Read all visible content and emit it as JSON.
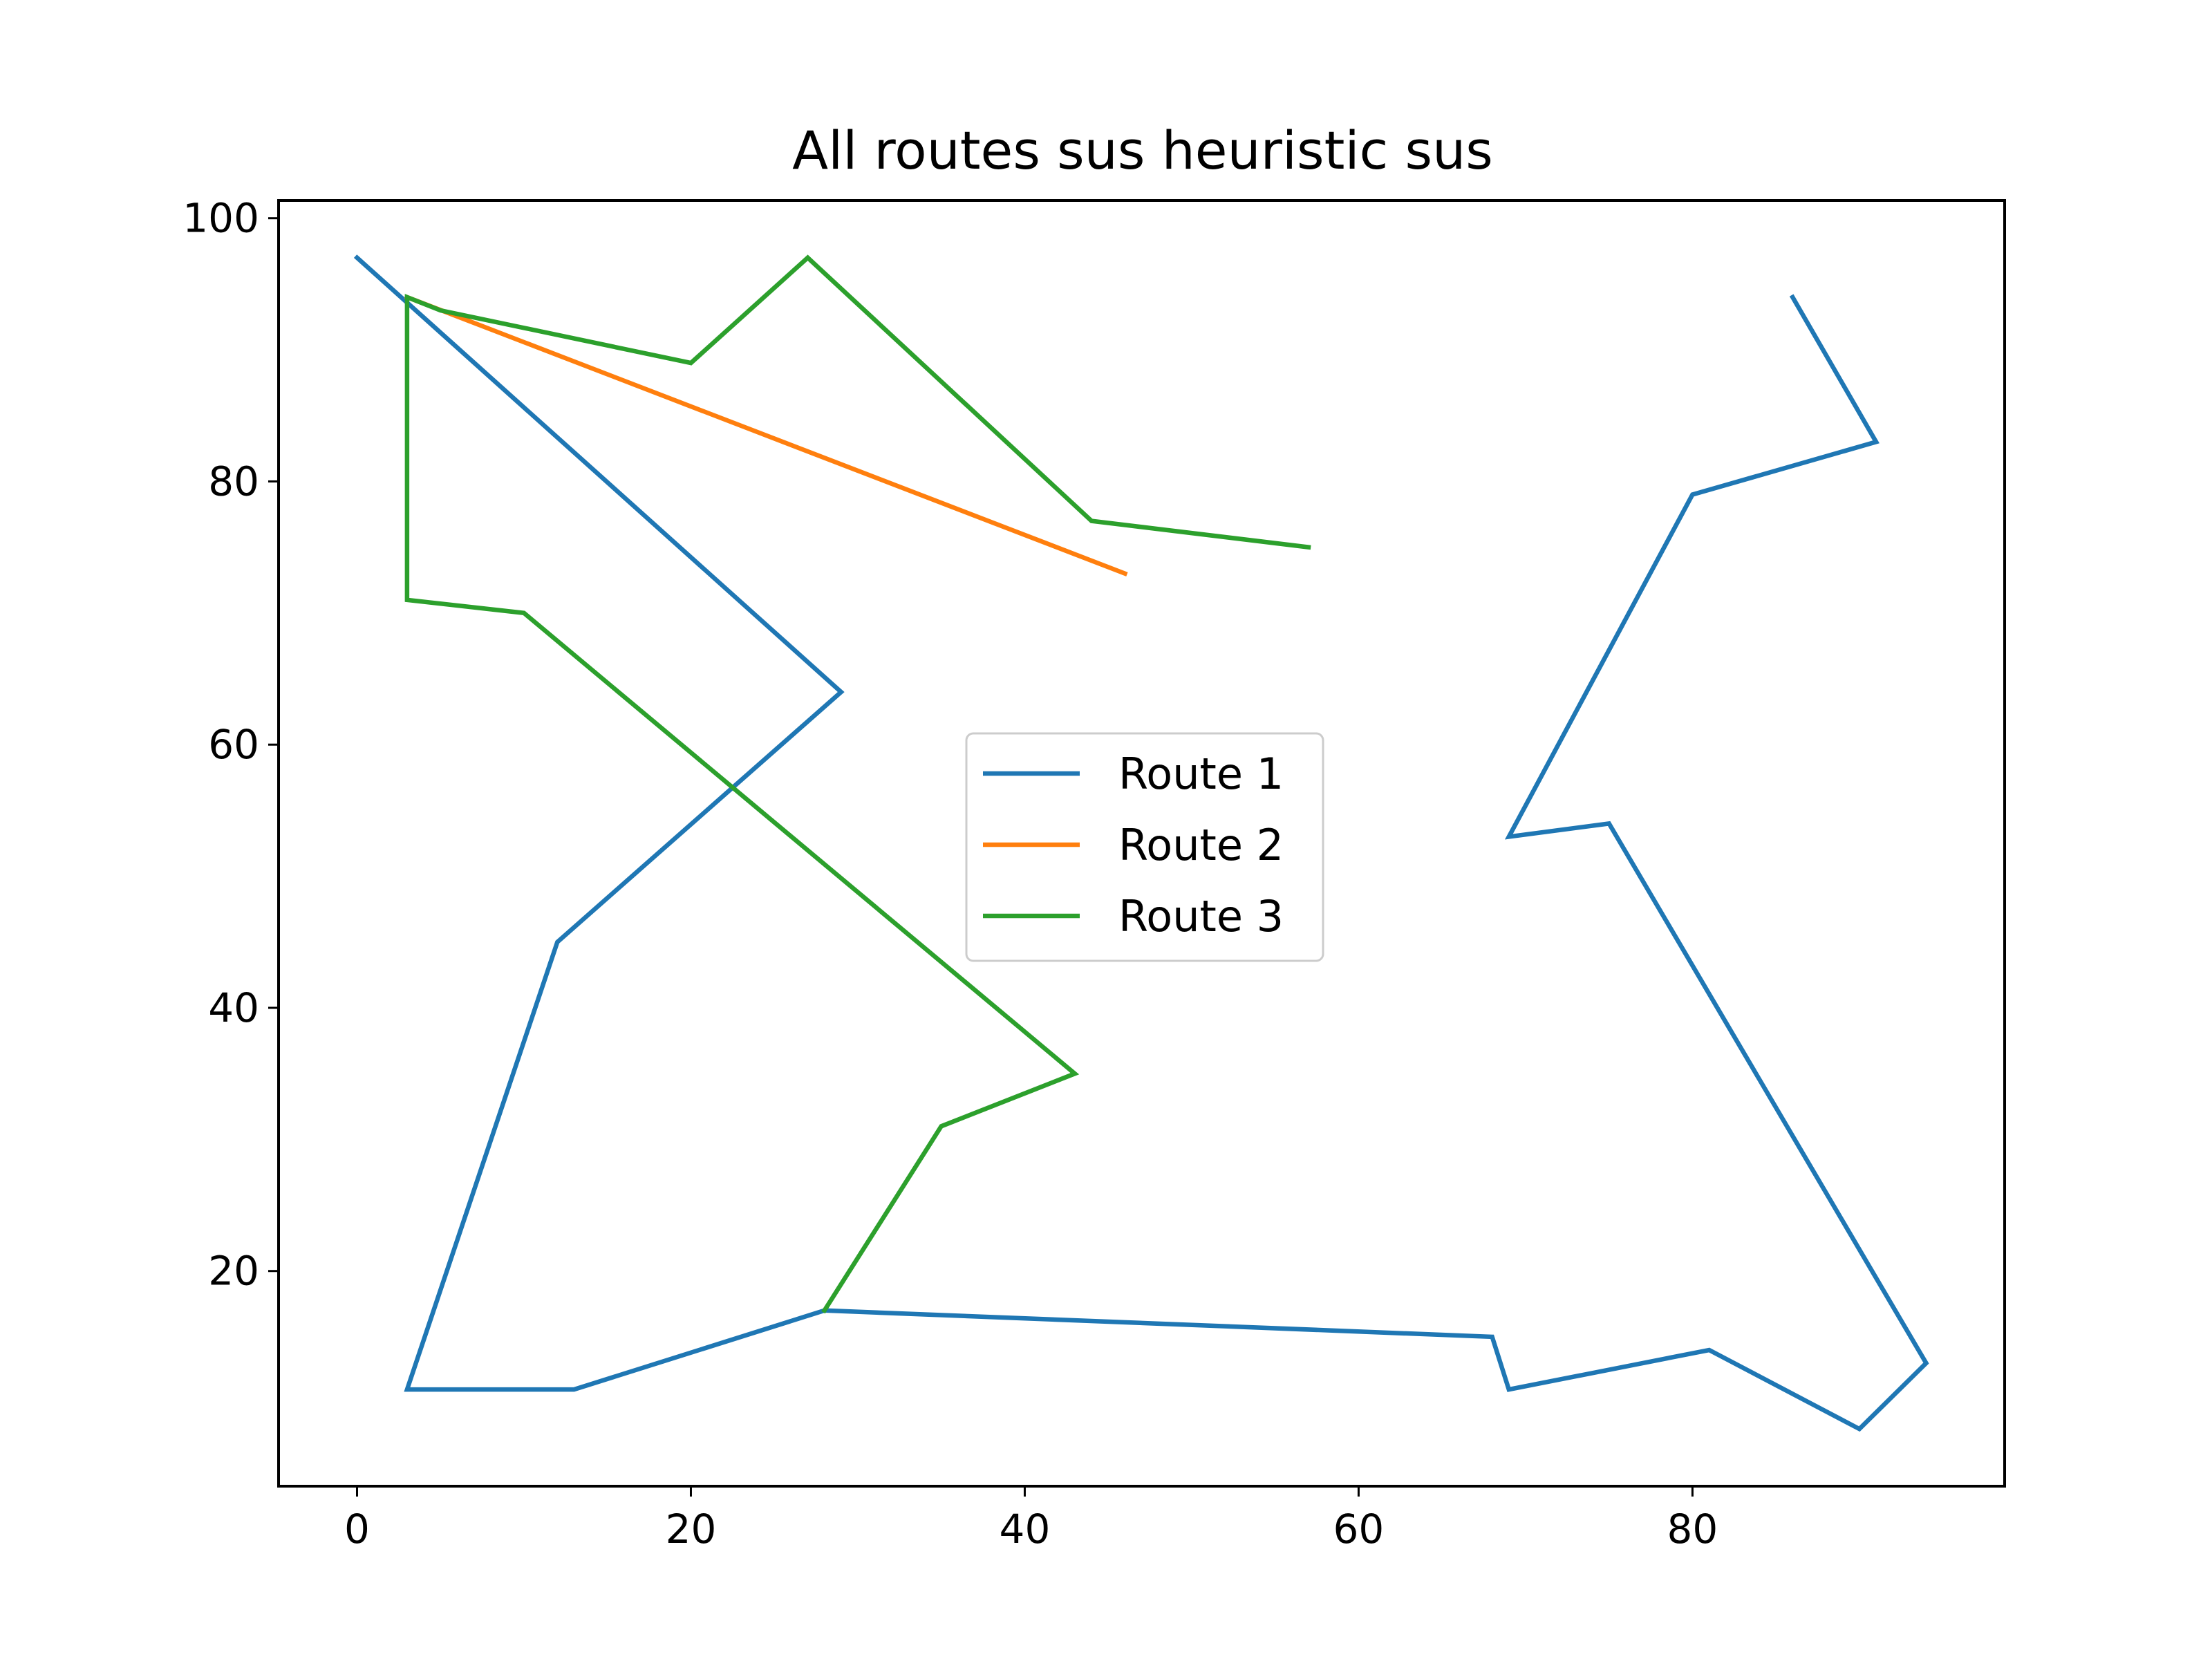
{
  "chart_data": {
    "type": "line",
    "title": "All routes sus heuristic sus",
    "xlabel": "",
    "ylabel": "",
    "xlim": [
      -4.7,
      98.7
    ],
    "ylim": [
      3.65,
      101.35
    ],
    "xticks": [
      0,
      20,
      40,
      60,
      80
    ],
    "yticks": [
      20,
      40,
      60,
      80,
      100
    ],
    "grid": false,
    "legend": {
      "placement": "center"
    },
    "series": [
      {
        "name": "Route 1",
        "color": "#1f77b4",
        "x": [
          0,
          29,
          12,
          3,
          13,
          28,
          68,
          69,
          81,
          90,
          94,
          75,
          69,
          80,
          91,
          86
        ],
        "y": [
          97,
          64,
          45,
          11,
          11,
          17,
          15,
          11,
          14,
          8,
          13,
          54,
          53,
          79,
          83,
          94
        ]
      },
      {
        "name": "Route 2",
        "color": "#ff7f0e",
        "x": [
          3,
          46
        ],
        "y": [
          94,
          73
        ]
      },
      {
        "name": "Route 3",
        "color": "#2ca02c",
        "x": [
          57,
          44,
          27,
          20,
          5,
          3,
          3,
          10,
          43,
          35,
          28
        ],
        "y": [
          75,
          77,
          97,
          89,
          93,
          94,
          71,
          70,
          35,
          31,
          17
        ]
      }
    ]
  }
}
